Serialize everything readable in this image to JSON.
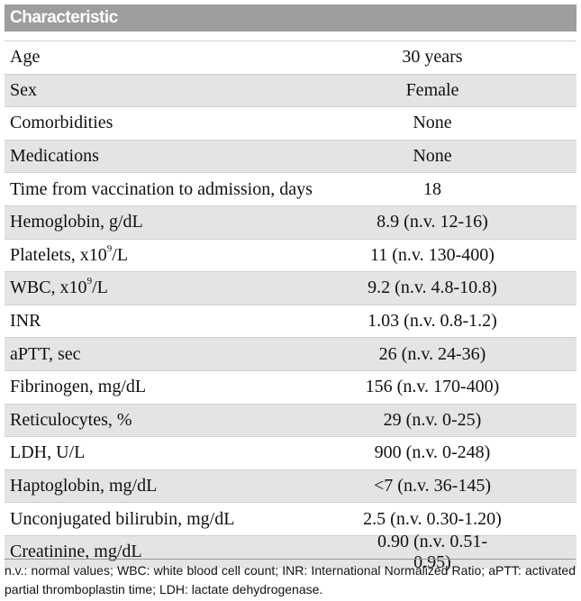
{
  "table": {
    "header": "Characteristic",
    "rows": [
      [
        "Age",
        "30 years"
      ],
      [
        "Sex",
        "Female"
      ],
      [
        "Comorbidities",
        "None"
      ],
      [
        "Medications",
        "None"
      ],
      [
        "Time from vaccination to admission, days",
        "18"
      ],
      [
        "Hemoglobin, g/dL",
        "8.9 (n.v. 12-16)"
      ],
      [
        {
          "pre": "Platelets, x10",
          "sup": "9",
          "post": "/L"
        },
        "11 (n.v. 130-400)"
      ],
      [
        {
          "pre": "WBC, x10",
          "sup": "9",
          "post": "/L"
        },
        "9.2 (n.v. 4.8-10.8)"
      ],
      [
        "INR",
        "1.03 (n.v. 0.8-1.2)"
      ],
      [
        "aPTT, sec",
        "26 (n.v. 24-36)"
      ],
      [
        "Fibrinogen, mg/dL",
        "156 (n.v. 170-400)"
      ],
      [
        "Reticulocytes, %",
        "29 (n.v. 0-25)"
      ],
      [
        "LDH, U/L",
        "900 (n.v. 0-248)"
      ],
      [
        "Haptoglobin, mg/dL",
        "<7 (n.v. 36-145)"
      ],
      [
        "Unconjugated bilirubin, mg/dL",
        "2.5 (n.v. 0.30-1.20)"
      ],
      [
        "Creatinine, mg/dL",
        "0.90 (n.v. 0.51-0.95)"
      ]
    ]
  },
  "footnote": "n.v.: normal values; WBC: white blood cell count; INR: International Normalized Ratio; aPTT: activated partial thromboplastin time; LDH: lactate dehydrogenase."
}
